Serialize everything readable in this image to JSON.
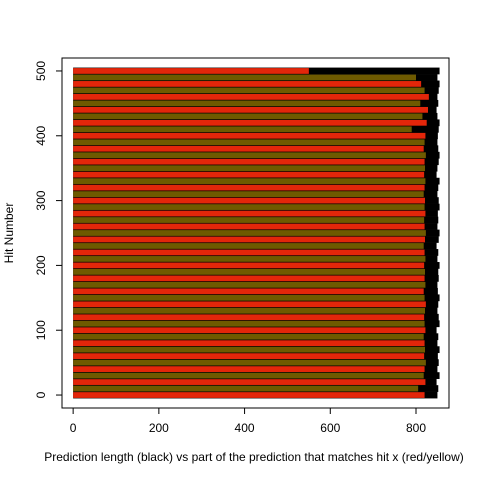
{
  "chart_data": {
    "type": "segments",
    "xlabel": "Prediction length (black) vs part of the prediction that matches hit x (red/yellow)",
    "ylabel": "Hit Number",
    "hits": [
      0,
      10,
      20,
      30,
      40,
      50,
      60,
      70,
      80,
      90,
      100,
      110,
      120,
      130,
      140,
      150,
      160,
      170,
      180,
      190,
      200,
      210,
      220,
      230,
      240,
      250,
      260,
      270,
      280,
      290,
      300,
      310,
      320,
      330,
      340,
      350,
      360,
      370,
      380,
      390,
      400,
      410,
      420,
      430,
      440,
      450,
      460,
      470,
      480,
      490,
      500
    ],
    "series": [
      {
        "color": "#000000",
        "values": [
          850,
          852,
          848,
          855,
          850,
          853,
          851,
          855,
          850,
          852,
          848,
          855,
          853,
          850,
          852,
          855,
          851,
          850,
          853,
          852,
          855,
          850,
          852,
          848,
          853,
          855,
          850,
          852,
          851,
          855,
          853,
          850,
          852,
          855,
          848,
          850,
          853,
          855,
          852,
          850,
          851,
          853,
          855,
          850,
          848,
          852,
          850,
          853,
          855,
          850,
          855
        ]
      },
      {
        "colors": [
          "#e3260a",
          "#6e5a00"
        ],
        "values": [
          820,
          805,
          822,
          818,
          820,
          823,
          819,
          821,
          820,
          818,
          822,
          820,
          819,
          821,
          823,
          820,
          818,
          822,
          820,
          821,
          819,
          822,
          820,
          818,
          821,
          823,
          820,
          819,
          822,
          820,
          821,
          818,
          820,
          822,
          819,
          821,
          820,
          823,
          818,
          820,
          822,
          790,
          825,
          815,
          828,
          810,
          830,
          820,
          812,
          800,
          550
        ]
      }
    ],
    "xlim": [
      -26,
      877
    ],
    "ylim": [
      -20,
      520
    ],
    "xticks": [
      0,
      200,
      400,
      600,
      800
    ],
    "yticks": [
      0,
      100,
      200,
      300,
      400,
      500
    ]
  }
}
